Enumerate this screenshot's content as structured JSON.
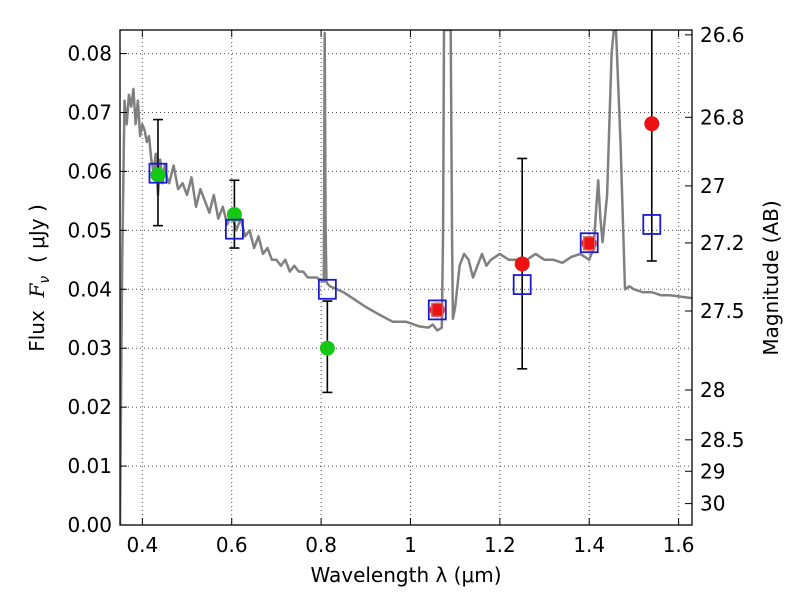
{
  "chart_data": {
    "type": "scatter",
    "xlabel": "Wavelength  λ (μm)",
    "ylabel": "Flux  F_ν  ( μJy )",
    "ylabel_parts": {
      "prefix": "Flux  ",
      "symbol": "F",
      "subscript": "ν",
      "suffix": "  ( μJy )"
    },
    "ylabel_right": "Magnitude (AB)",
    "xlim": [
      0.35,
      1.63
    ],
    "ylim": [
      0.0,
      0.084
    ],
    "grid": true,
    "x_ticks": [
      0.4,
      0.6,
      0.8,
      1.0,
      1.2,
      1.4,
      1.6
    ],
    "x_tick_labels": [
      "0.4",
      "0.6",
      "0.8",
      "1",
      "1.2",
      "1.4",
      "1.6"
    ],
    "y_ticks": [
      0.0,
      0.01,
      0.02,
      0.03,
      0.04,
      0.05,
      0.06,
      0.07,
      0.08
    ],
    "y_tick_labels": [
      "0.00",
      "0.01",
      "0.02",
      "0.03",
      "0.04",
      "0.05",
      "0.06",
      "0.07",
      "0.08"
    ],
    "right_axis": {
      "ticks": [
        26.6,
        26.8,
        27,
        27.2,
        27.5,
        28,
        28.5,
        29,
        30
      ],
      "tick_labels": [
        "26.6",
        "26.8",
        "27",
        "27.2",
        "27.5",
        "28",
        "28.5",
        "29",
        "30"
      ],
      "flux_zero_point_uJy": 3631000000.0
    },
    "colors": {
      "sed": "#808080",
      "green": "#14c814",
      "red": "#ee1111",
      "model_box": "#1a1ad6",
      "inner_box": "#c07070",
      "errorbar": "#000000"
    },
    "sed_model": {
      "x": [
        0.35,
        0.355,
        0.36,
        0.365,
        0.37,
        0.375,
        0.38,
        0.385,
        0.39,
        0.395,
        0.4,
        0.405,
        0.41,
        0.415,
        0.42,
        0.425,
        0.43,
        0.435,
        0.44,
        0.445,
        0.45,
        0.455,
        0.46,
        0.47,
        0.48,
        0.49,
        0.5,
        0.51,
        0.52,
        0.53,
        0.54,
        0.55,
        0.56,
        0.57,
        0.58,
        0.59,
        0.6,
        0.61,
        0.62,
        0.63,
        0.64,
        0.65,
        0.66,
        0.67,
        0.68,
        0.69,
        0.7,
        0.71,
        0.72,
        0.73,
        0.74,
        0.75,
        0.76,
        0.77,
        0.78,
        0.79,
        0.8,
        0.806,
        0.808,
        0.81,
        0.812,
        0.814,
        0.816,
        0.82,
        0.83,
        0.85,
        0.87,
        0.9,
        0.93,
        0.96,
        0.99,
        1.02,
        1.04,
        1.05,
        1.06,
        1.07,
        1.073,
        1.075,
        1.08,
        1.085,
        1.09,
        1.093,
        1.095,
        1.1,
        1.11,
        1.12,
        1.13,
        1.14,
        1.15,
        1.16,
        1.17,
        1.18,
        1.2,
        1.22,
        1.24,
        1.26,
        1.28,
        1.3,
        1.32,
        1.34,
        1.36,
        1.38,
        1.4,
        1.41,
        1.415,
        1.42,
        1.425,
        1.43,
        1.44,
        1.45,
        1.455,
        1.46,
        1.47,
        1.48,
        1.49,
        1.5,
        1.52,
        1.54,
        1.56,
        1.58,
        1.6,
        1.63
      ],
      "y": [
        0.0,
        0.045,
        0.072,
        0.068,
        0.073,
        0.071,
        0.074,
        0.068,
        0.072,
        0.066,
        0.068,
        0.067,
        0.065,
        0.066,
        0.062,
        0.06,
        0.063,
        0.056,
        0.062,
        0.058,
        0.061,
        0.059,
        0.058,
        0.061,
        0.057,
        0.058,
        0.056,
        0.059,
        0.054,
        0.057,
        0.055,
        0.053,
        0.056,
        0.052,
        0.054,
        0.051,
        0.053,
        0.05,
        0.052,
        0.049,
        0.05,
        0.047,
        0.049,
        0.046,
        0.047,
        0.045,
        0.045,
        0.044,
        0.045,
        0.043,
        0.044,
        0.043,
        0.043,
        0.042,
        0.042,
        0.042,
        0.0415,
        0.0413,
        0.0835,
        0.05,
        0.0412,
        0.041,
        0.0408,
        0.0405,
        0.0402,
        0.0395,
        0.0385,
        0.037,
        0.0357,
        0.0345,
        0.0345,
        0.0337,
        0.0335,
        0.034,
        0.033,
        0.0335,
        0.05,
        0.084,
        0.084,
        0.084,
        0.084,
        0.05,
        0.035,
        0.037,
        0.044,
        0.046,
        0.045,
        0.042,
        0.044,
        0.046,
        0.044,
        0.045,
        0.046,
        0.045,
        0.045,
        0.045,
        0.046,
        0.045,
        0.045,
        0.0445,
        0.0455,
        0.046,
        0.045,
        0.047,
        0.053,
        0.0585,
        0.052,
        0.048,
        0.056,
        0.08,
        0.084,
        0.084,
        0.065,
        0.04,
        0.0405,
        0.04,
        0.0395,
        0.0395,
        0.039,
        0.039,
        0.0388,
        0.0385
      ]
    },
    "observed_green": {
      "x": [
        0.435,
        0.606,
        0.814
      ],
      "y": [
        0.0594,
        0.0527,
        0.03
      ],
      "yerr_low": [
        0.0508,
        0.047,
        0.0225
      ],
      "yerr_high": [
        0.0688,
        0.0585,
        0.038
      ]
    },
    "observed_red": {
      "x": [
        1.06,
        1.25,
        1.4,
        1.54
      ],
      "y": [
        0.0365,
        0.0443,
        0.0478,
        0.0681
      ],
      "yerr_low": [
        null,
        0.0265,
        null,
        0.0448
      ],
      "yerr_high": [
        null,
        0.0622,
        null,
        0.084
      ]
    },
    "model_points": {
      "x": [
        0.435,
        0.606,
        0.814,
        1.06,
        1.25,
        1.4,
        1.54
      ],
      "y": [
        0.0597,
        0.0502,
        0.04,
        0.0365,
        0.0408,
        0.0479,
        0.051
      ]
    },
    "inner_model_points": {
      "x": [
        1.06,
        1.4
      ],
      "y": [
        0.0365,
        0.0478
      ]
    }
  }
}
